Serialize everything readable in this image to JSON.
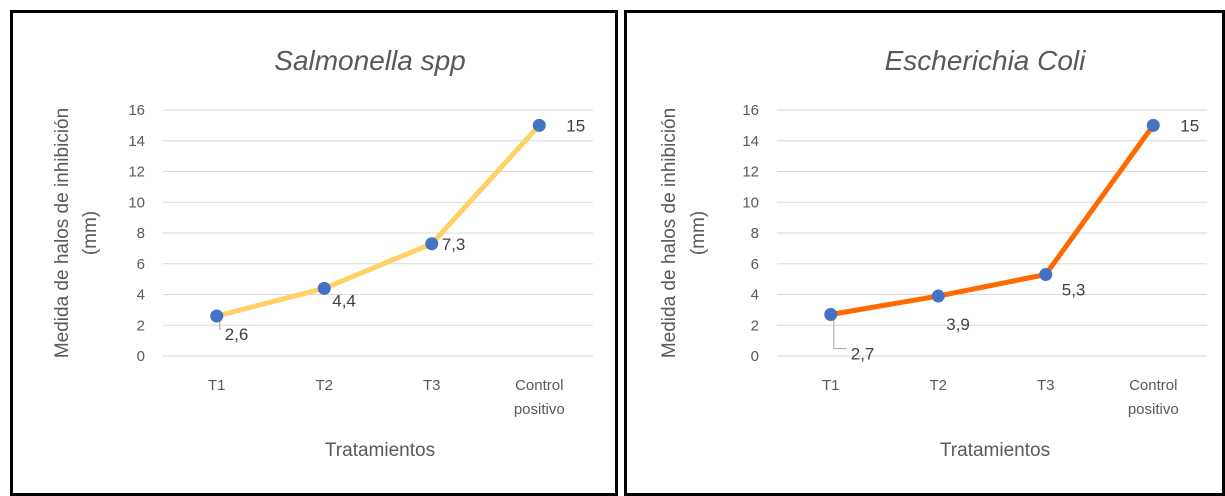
{
  "chart_data": [
    {
      "type": "line",
      "title": "Salmonella spp",
      "xlabel": "Tratamientos",
      "ylabel": "Medida  de halos de inhibición (mm)",
      "ylabel_lines": [
        "Medida  de halos de inhibición",
        "(mm)"
      ],
      "categories": [
        "T1",
        "T2",
        "T3",
        "Control positivo"
      ],
      "category_lines": [
        [
          "T1"
        ],
        [
          "T2"
        ],
        [
          "T3"
        ],
        [
          "Control",
          "positivo"
        ]
      ],
      "yticks": [
        "0",
        "2",
        "4",
        "6",
        "8",
        "10",
        "12",
        "14",
        "16"
      ],
      "ylim": [
        0,
        16
      ],
      "grid": true,
      "series": [
        {
          "values": [
            2.6,
            4.4,
            7.3,
            15
          ],
          "labels": [
            "2,6",
            "4,4",
            "7,3",
            "15"
          ],
          "line_color": "#FFD166",
          "marker_color": "#4472C4"
        }
      ]
    },
    {
      "type": "line",
      "title": "Escherichia  Coli",
      "xlabel": "Tratamientos",
      "ylabel": "Medida  de halos de inhibición (mm)",
      "ylabel_lines": [
        "Medida  de halos de inhibición",
        "(mm)"
      ],
      "categories": [
        "T1",
        "T2",
        "T3",
        "Control positivo"
      ],
      "category_lines": [
        [
          "T1"
        ],
        [
          "T2"
        ],
        [
          "T3"
        ],
        [
          "Control",
          "positivo"
        ]
      ],
      "yticks": [
        "0",
        "2",
        "4",
        "6",
        "8",
        "10",
        "12",
        "14",
        "16"
      ],
      "ylim": [
        0,
        16
      ],
      "grid": true,
      "series": [
        {
          "values": [
            2.7,
            3.9,
            5.3,
            15
          ],
          "labels": [
            "2,7",
            "3,9",
            "5,3",
            "15"
          ],
          "line_color": "#FF6A00",
          "marker_color": "#4472C4"
        }
      ]
    }
  ]
}
